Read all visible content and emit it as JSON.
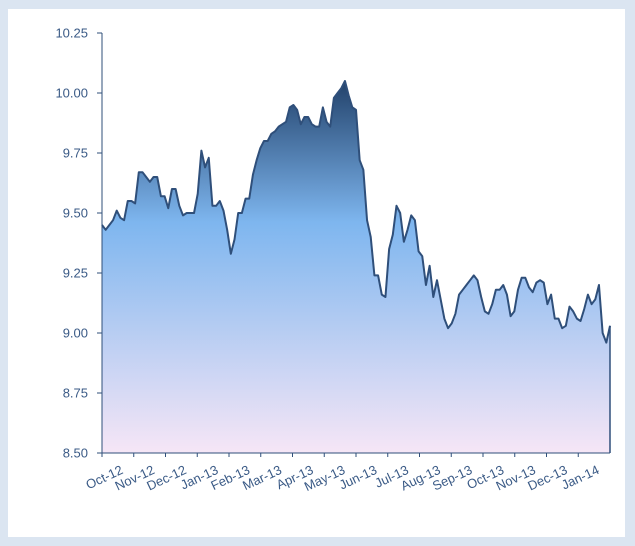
{
  "colors": {
    "background": "#dbe5f1",
    "panel": "#ffffff",
    "line": "#2f4f7a",
    "fill_top": "#22426b",
    "fill_mid": "#7eb6ef",
    "fill_bottom": "#f6e6f6",
    "axis_text": "#3a5a86",
    "axis_line": "#2f4f7a"
  },
  "chart_data": {
    "type": "area",
    "title": "",
    "xlabel": "",
    "ylabel": "",
    "ylim": [
      8.5,
      10.25
    ],
    "yticks": [
      "10.25",
      "10.00",
      "9.75",
      "9.50",
      "9.25",
      "9.00",
      "8.75",
      "8.50"
    ],
    "ytick_values": [
      10.25,
      10.0,
      9.75,
      9.5,
      9.25,
      9.0,
      8.75,
      8.5
    ],
    "xticks": [
      "Oct-12",
      "Nov-12",
      "Dec-12",
      "Jan-13",
      "Feb-13",
      "Mar-13",
      "Apr-13",
      "May-13",
      "Jun-13",
      "Jul-13",
      "Aug-13",
      "Sep-13",
      "Oct-13",
      "Nov-13",
      "Dec-13",
      "Jan-14"
    ],
    "grid": false,
    "legend": "none",
    "series": [
      {
        "values": [
          9.45,
          9.43,
          9.45,
          9.47,
          9.51,
          9.48,
          9.47,
          9.55,
          9.55,
          9.54,
          9.67,
          9.67,
          9.65,
          9.63,
          9.65,
          9.65,
          9.57,
          9.57,
          9.52,
          9.6,
          9.6,
          9.53,
          9.49,
          9.5,
          9.5,
          9.5,
          9.58,
          9.76,
          9.69,
          9.73,
          9.53,
          9.53,
          9.55,
          9.51,
          9.43,
          9.33,
          9.39,
          9.5,
          9.5,
          9.56,
          9.56,
          9.66,
          9.72,
          9.77,
          9.8,
          9.8,
          9.83,
          9.84,
          9.86,
          9.87,
          9.88,
          9.94,
          9.95,
          9.93,
          9.87,
          9.9,
          9.9,
          9.87,
          9.86,
          9.86,
          9.94,
          9.88,
          9.86,
          9.98,
          10.0,
          10.02,
          10.05,
          9.99,
          9.94,
          9.93,
          9.72,
          9.68,
          9.47,
          9.4,
          9.24,
          9.24,
          9.16,
          9.15,
          9.35,
          9.41,
          9.53,
          9.5,
          9.38,
          9.43,
          9.49,
          9.47,
          9.34,
          9.32,
          9.2,
          9.28,
          9.15,
          9.22,
          9.14,
          9.06,
          9.02,
          9.04,
          9.08,
          9.16,
          9.18,
          9.2,
          9.22,
          9.24,
          9.22,
          9.15,
          9.09,
          9.08,
          9.12,
          9.18,
          9.18,
          9.2,
          9.16,
          9.07,
          9.09,
          9.18,
          9.23,
          9.23,
          9.19,
          9.17,
          9.21,
          9.22,
          9.21,
          9.12,
          9.16,
          9.06,
          9.06,
          9.02,
          9.03,
          9.11,
          9.09,
          9.06,
          9.05,
          9.1,
          9.16,
          9.12,
          9.14,
          9.2,
          9.0,
          8.96,
          9.03
        ]
      }
    ]
  }
}
